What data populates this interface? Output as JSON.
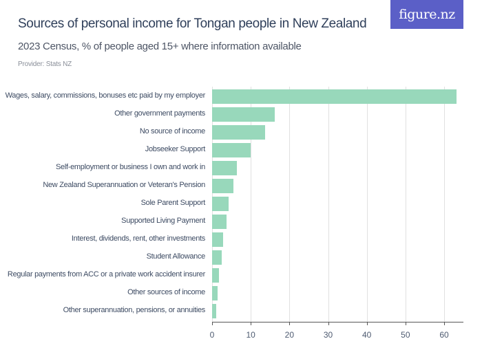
{
  "header": {
    "title": "Sources of personal income for Tongan people in New Zealand",
    "subtitle": "2023 Census, % of people aged 15+ where information available",
    "provider": "Provider: Stats NZ",
    "logo": "figure.nz"
  },
  "chart_data": {
    "type": "bar",
    "orientation": "horizontal",
    "title": "Sources of personal income for Tongan people in New Zealand",
    "subtitle": "2023 Census, % of people aged 15+ where information available",
    "xlabel": "",
    "ylabel": "",
    "xlim": [
      0,
      65
    ],
    "xticks": [
      0,
      10,
      20,
      30,
      40,
      50,
      60
    ],
    "grid": true,
    "color": "#98d8bb",
    "categories": [
      "Wages, salary, commissions, bonuses etc paid by my employer",
      "Other government payments",
      "No source of income",
      "Jobseeker Support",
      "Self-employment or business I own and work in",
      "New Zealand Superannuation or Veteran's Pension",
      "Sole Parent Support",
      "Supported Living Payment",
      "Interest, dividends, rent, other investments",
      "Student Allowance",
      "Regular payments from ACC or a private work accident insurer",
      "Other sources of income",
      "Other superannuation, pensions, or annuities"
    ],
    "values": [
      63.2,
      16.2,
      13.7,
      10.0,
      6.4,
      5.5,
      4.3,
      3.7,
      2.8,
      2.5,
      1.8,
      1.5,
      1.0
    ]
  }
}
